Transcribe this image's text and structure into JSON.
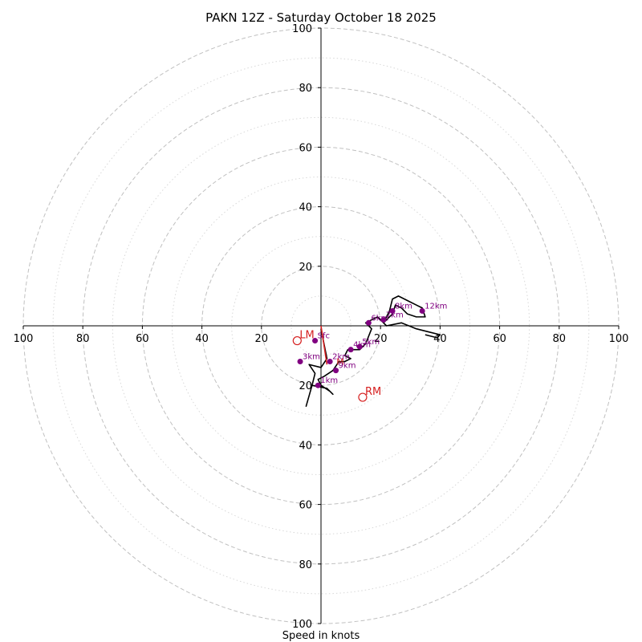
{
  "chart_data": {
    "type": "hodograph",
    "title": "PAKN 12Z - Saturday October 18 2025",
    "xlabel": "Speed in knots",
    "ylabel": "",
    "range": [
      -100,
      100
    ],
    "tick_step": 20,
    "x_tick_labels": [
      "100",
      "80",
      "60",
      "40",
      "20",
      "20",
      "40",
      "60",
      "80",
      "100"
    ],
    "y_tick_labels": [
      "100",
      "80",
      "60",
      "40",
      "20",
      "20",
      "40",
      "60",
      "80",
      "100"
    ],
    "rings_major": [
      20,
      40,
      60,
      80,
      100
    ],
    "rings_minor": [
      10,
      30,
      50,
      70,
      90
    ],
    "trace": [
      [
        0,
        -1
      ],
      [
        1,
        -6
      ],
      [
        2,
        -11
      ],
      [
        0,
        -14
      ],
      [
        -4,
        -13
      ],
      [
        -2,
        -16
      ],
      [
        -3,
        -20
      ],
      [
        -5,
        -27
      ],
      [
        -3,
        -20
      ],
      [
        2,
        -21
      ],
      [
        4,
        -23
      ],
      [
        3,
        -22
      ],
      [
        0,
        -20
      ],
      [
        -1,
        -18
      ],
      [
        1,
        -17
      ],
      [
        4,
        -15
      ],
      [
        6,
        -12
      ],
      [
        8,
        -12
      ],
      [
        10,
        -11
      ],
      [
        8,
        -10
      ],
      [
        9,
        -8
      ],
      [
        11,
        -8
      ],
      [
        13,
        -8
      ],
      [
        15,
        -6
      ],
      [
        17,
        -1
      ],
      [
        15,
        1
      ],
      [
        17,
        2
      ],
      [
        19,
        3
      ],
      [
        21,
        1
      ],
      [
        23,
        5
      ],
      [
        24,
        9
      ],
      [
        26,
        10
      ],
      [
        32,
        7
      ],
      [
        34,
        6
      ],
      [
        35,
        3
      ],
      [
        32,
        3
      ],
      [
        29,
        4
      ],
      [
        27,
        6
      ],
      [
        25,
        7
      ],
      [
        24,
        4
      ],
      [
        22,
        2
      ],
      [
        21,
        1
      ],
      [
        22,
        0
      ],
      [
        27,
        1
      ],
      [
        32,
        -1
      ],
      [
        36,
        -2
      ],
      [
        40,
        -3
      ],
      [
        39,
        -4
      ],
      [
        35,
        -3
      ]
    ],
    "height_markers": [
      {
        "label": "Sfc",
        "u": -2,
        "v": -5
      },
      {
        "label": "1km",
        "u": -1,
        "v": -20
      },
      {
        "label": "2km",
        "u": 3,
        "v": -12
      },
      {
        "label": "3km",
        "u": -7,
        "v": -12
      },
      {
        "label": "4km",
        "u": 10,
        "v": -8
      },
      {
        "label": "5km",
        "u": 13,
        "v": -7
      },
      {
        "label": "6km",
        "u": 16,
        "v": 1
      },
      {
        "label": "7km",
        "u": 21,
        "v": 2
      },
      {
        "label": "8km",
        "u": 24,
        "v": 5
      },
      {
        "label": "12km",
        "u": 34,
        "v": 5
      },
      {
        "label": "9km",
        "u": 5,
        "v": -15
      }
    ],
    "storm_motion_line": [
      [
        0,
        0
      ],
      [
        2,
        -13
      ]
    ],
    "storm_motion_labels": [
      {
        "label": "LM",
        "u": -8,
        "v": -5
      },
      {
        "label": "RM",
        "u": 14,
        "v": -24
      },
      {
        "label": "M",
        "u": 6,
        "v": -12
      }
    ],
    "colors": {
      "grid": "#c0c0c0",
      "grid_minor": "#d8d8d8",
      "trace": "#000000",
      "markers": "#800080",
      "storm_motion": "#d62020",
      "axis": "#000000"
    }
  }
}
